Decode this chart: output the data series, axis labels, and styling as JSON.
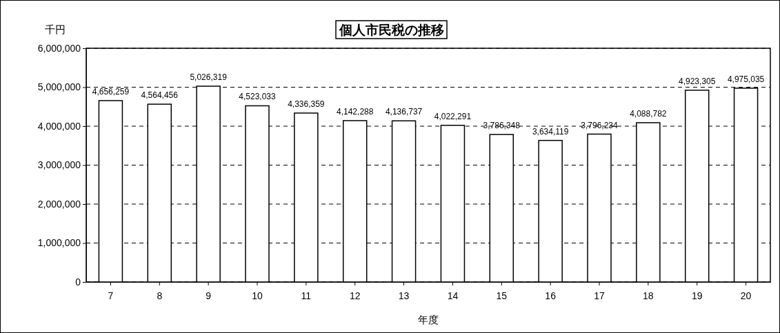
{
  "chart_data": {
    "type": "bar",
    "title": "個人市民税の推移",
    "ylabel": "千円",
    "xlabel": "年度",
    "categories": [
      "7",
      "8",
      "9",
      "10",
      "11",
      "12",
      "13",
      "14",
      "15",
      "16",
      "17",
      "18",
      "19",
      "20"
    ],
    "values": [
      4656259,
      4564456,
      5026319,
      4523033,
      4336359,
      4142288,
      4136737,
      4022291,
      3786348,
      3634119,
      3796234,
      4088782,
      4923305,
      4975035
    ],
    "value_labels": [
      "4,656,259",
      "4,564,456",
      "5,026,319",
      "4,523,033",
      "4,336,359",
      "4,142,288",
      "4,136,737",
      "4,022,291",
      "3,786,348",
      "3,634,119",
      "3,796,234",
      "4,088,782",
      "4,923,305",
      "4,975,035"
    ],
    "color": "#ffffff",
    "ylim": [
      0,
      6000000
    ],
    "yticks": [
      {
        "value": 0,
        "label": "0"
      },
      {
        "value": 1000000,
        "label": "1,000,000"
      },
      {
        "value": 2000000,
        "label": "2,000,000"
      },
      {
        "value": 3000000,
        "label": "3,000,000"
      },
      {
        "value": 4000000,
        "label": "4,000,000"
      },
      {
        "value": 5000000,
        "label": "5,000,000"
      },
      {
        "value": 6000000,
        "label": "6,000,000"
      }
    ],
    "grid": "y"
  }
}
